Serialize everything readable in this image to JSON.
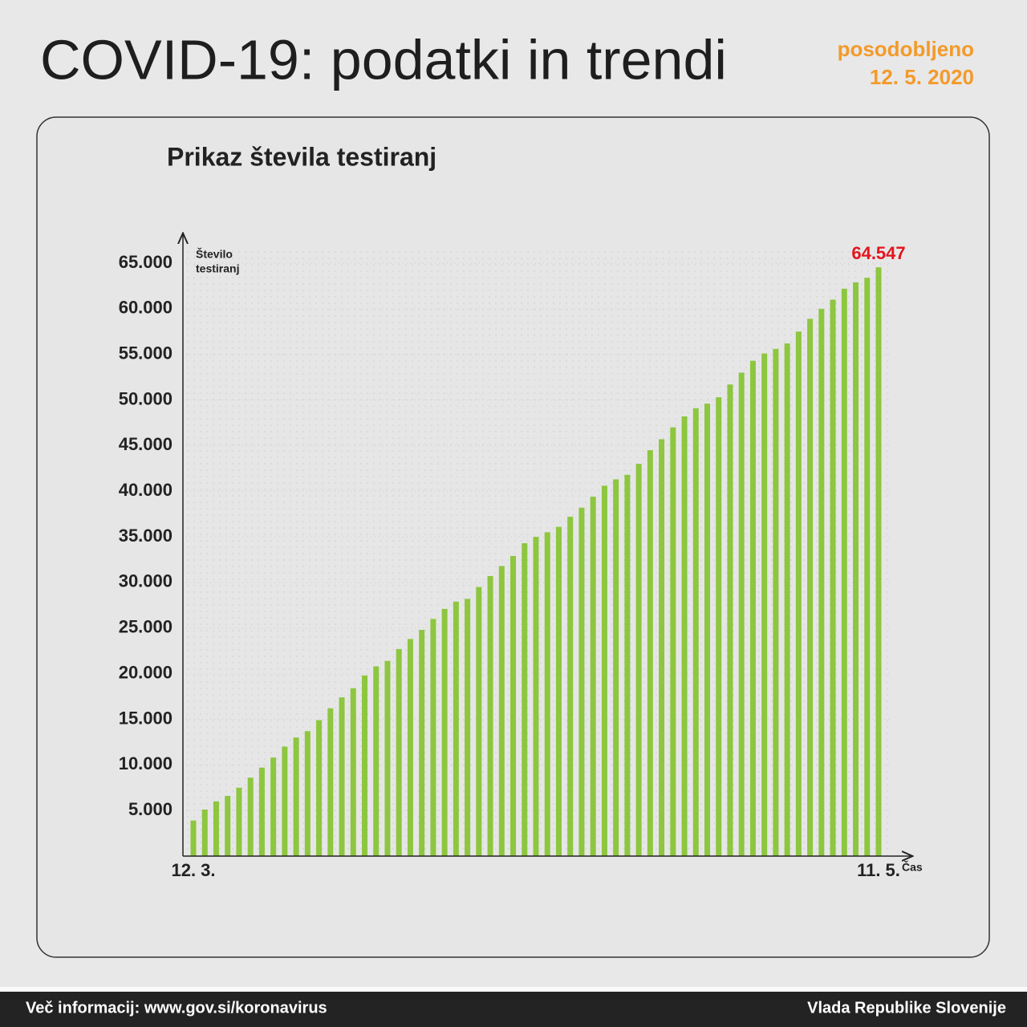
{
  "header": {
    "title": "COVID-19: podatki in trendi",
    "updated_label": "posodobljeno",
    "updated_date": "12. 5. 2020"
  },
  "chart_data": {
    "type": "bar",
    "title": "Prikaz števila testiranj",
    "ylabel": [
      "Število",
      "testiranj"
    ],
    "xlabel": "Čas",
    "categories": [
      "12. 3.",
      null,
      null,
      null,
      null,
      null,
      null,
      null,
      null,
      null,
      null,
      null,
      null,
      null,
      null,
      null,
      null,
      null,
      null,
      null,
      null,
      null,
      null,
      null,
      null,
      null,
      null,
      null,
      null,
      null,
      null,
      null,
      null,
      null,
      null,
      null,
      null,
      null,
      null,
      null,
      null,
      null,
      null,
      null,
      null,
      null,
      null,
      null,
      null,
      null,
      null,
      null,
      null,
      null,
      null,
      null,
      null,
      null,
      null,
      null,
      "11. 5."
    ],
    "values": [
      3900,
      5100,
      6000,
      6600,
      7500,
      8600,
      9700,
      10800,
      12000,
      13000,
      13700,
      14900,
      16200,
      17400,
      18400,
      19800,
      20800,
      21400,
      22700,
      23800,
      24800,
      26000,
      27100,
      27900,
      28200,
      29500,
      30700,
      31800,
      32900,
      34300,
      35000,
      35500,
      36100,
      37200,
      38200,
      39400,
      40600,
      41300,
      41800,
      43000,
      44500,
      45700,
      47000,
      48200,
      49100,
      49600,
      50300,
      51700,
      53000,
      54300,
      55100,
      55600,
      56200,
      57500,
      58900,
      60000,
      61000,
      62200,
      62900,
      63400,
      64547
    ],
    "value_labels": [
      null,
      null,
      null,
      null,
      null,
      null,
      null,
      null,
      null,
      null,
      null,
      null,
      null,
      null,
      null,
      null,
      null,
      null,
      null,
      null,
      null,
      null,
      null,
      null,
      null,
      null,
      null,
      null,
      null,
      null,
      null,
      null,
      null,
      null,
      null,
      null,
      null,
      null,
      null,
      null,
      null,
      null,
      null,
      null,
      null,
      null,
      null,
      null,
      null,
      null,
      null,
      null,
      null,
      null,
      null,
      null,
      null,
      null,
      null,
      null,
      "64.547"
    ],
    "color": "#8dc63f",
    "value_label_color": "#e3151e",
    "ylim": [
      0,
      65000
    ],
    "yticks": [
      {
        "value": 5000,
        "label": "5.000"
      },
      {
        "value": 10000,
        "label": "10.000"
      },
      {
        "value": 15000,
        "label": "15.000"
      },
      {
        "value": 20000,
        "label": "20.000"
      },
      {
        "value": 25000,
        "label": "25.000"
      },
      {
        "value": 30000,
        "label": "30.000"
      },
      {
        "value": 35000,
        "label": "35.000"
      },
      {
        "value": 40000,
        "label": "40.000"
      },
      {
        "value": 45000,
        "label": "45.000"
      },
      {
        "value": 50000,
        "label": "50.000"
      },
      {
        "value": 55000,
        "label": "55.000"
      },
      {
        "value": 60000,
        "label": "60.000"
      },
      {
        "value": 65000,
        "label": "65.000"
      }
    ],
    "grid": true
  },
  "footer": {
    "left": "Več informacij: www.gov.si/koronavirus",
    "right": "Vlada Republike Slovenije"
  }
}
